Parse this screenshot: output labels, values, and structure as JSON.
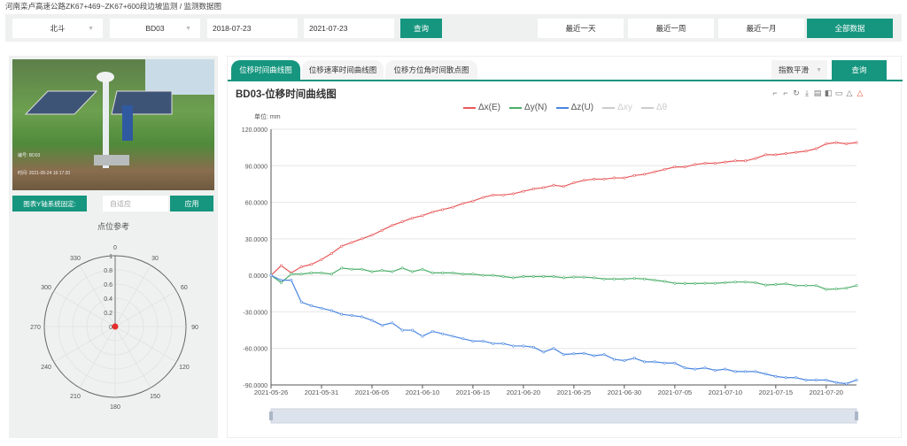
{
  "breadcrumb": {
    "project": "河南栾卢高速公路ZK67+469~ZK67+600段边坡监测",
    "sep": "/",
    "page": "监测数据图"
  },
  "filters": {
    "type": "北斗",
    "device": "BD03",
    "start_date": "2018-07-23",
    "end_date": "2021-07-23",
    "query_label": "查询",
    "quick": [
      {
        "label": "最近一天",
        "active": false
      },
      {
        "label": "最近一周",
        "active": false
      },
      {
        "label": "最近一月",
        "active": false
      },
      {
        "label": "全部数据",
        "active": true
      }
    ]
  },
  "left": {
    "y_axis_label": "图表Y轴系统固定:",
    "y_axis_placeholder": "自适应",
    "apply_label": "应用",
    "polar_title": "点位参考",
    "angle_labels": [
      "0",
      "30",
      "60",
      "90",
      "120",
      "150",
      "180",
      "210",
      "240",
      "270",
      "300",
      "330"
    ],
    "radius_labels": [
      "0",
      "0.2",
      "0.4",
      "0.6",
      "0.8",
      "1"
    ]
  },
  "tabs": [
    {
      "label": "位移时间曲线图",
      "active": true
    },
    {
      "label": "位移速率时间曲线图",
      "active": false
    },
    {
      "label": "位移方位角时间散点图",
      "active": false
    }
  ],
  "smoothing": "指数平滑",
  "query_label": "查询",
  "colors": {
    "accent": "#16967f",
    "x": "#e8585a",
    "y": "#4caf6a",
    "z": "#4a86e0",
    "disabled": "#ccc"
  },
  "chart_data": {
    "type": "line",
    "title": "BD03-位移时间曲线图",
    "unit_label": "单位: mm",
    "start_date": "2021-05-26",
    "interval_days": 1,
    "ylim": [
      -90,
      120
    ],
    "y_ticks": [
      "120.0000",
      "90.0000",
      "60.0000",
      "30.0000",
      "0.0000",
      "-30.0000",
      "-60.0000",
      "-90.0000"
    ],
    "x_ticks": [
      "2021-05-26",
      "2021-05-31",
      "2021-06-05",
      "2021-06-10",
      "2021-06-15",
      "2021-06-20",
      "2021-06-25",
      "2021-06-30",
      "2021-07-05",
      "2021-07-10",
      "2021-07-15",
      "2021-07-20"
    ],
    "legend": [
      "Δx(E)",
      "Δy(N)",
      "Δz(U)",
      "Δxy",
      "Δθ"
    ],
    "series": [
      {
        "name": "Δx(E)",
        "visible": true,
        "values": [
          0,
          8,
          2,
          7,
          9,
          13,
          18,
          24,
          27,
          30,
          33,
          37,
          41,
          44,
          47,
          49,
          52,
          54,
          56,
          59,
          61,
          64,
          66,
          66,
          67,
          69,
          71,
          72,
          74,
          73,
          76,
          78,
          79,
          79,
          80,
          80,
          82,
          83,
          85,
          87,
          89,
          89,
          91,
          92,
          92,
          93,
          94,
          94,
          96,
          99,
          99,
          100,
          101,
          102,
          104,
          108,
          109,
          108,
          109
        ]
      },
      {
        "name": "Δy(N)",
        "visible": true,
        "values": [
          0,
          -6,
          1,
          1,
          2,
          2,
          1,
          6,
          5,
          5,
          3,
          4,
          3,
          6,
          3,
          5,
          2,
          2,
          2,
          1,
          1,
          0,
          0,
          -1,
          -2,
          -1,
          -1,
          -1,
          -1,
          -2,
          -1.4,
          -1.5,
          -2,
          -3,
          -3,
          -3,
          -2.5,
          -3,
          -4,
          -5,
          -6.5,
          -6.7,
          -6.7,
          -6.5,
          -6.5,
          -6,
          -5.5,
          -5.5,
          -6,
          -8,
          -7.5,
          -7,
          -8.4,
          -8.4,
          -8.4,
          -11.5,
          -11.2,
          -10.5,
          -8.4
        ]
      },
      {
        "name": "Δz(U)",
        "visible": true,
        "values": [
          0,
          -4,
          -4,
          -22,
          -25,
          -27,
          -29,
          -32,
          -33,
          -34,
          -37,
          -41,
          -39,
          -45,
          -45,
          -50,
          -46,
          -48,
          -50,
          -52,
          -54,
          -54,
          -56,
          -56,
          -58,
          -58,
          -59,
          -63,
          -60,
          -65,
          -64.4,
          -64,
          -66,
          -65,
          -69,
          -70,
          -68,
          -71,
          -71,
          -72,
          -72,
          -76,
          -77,
          -76,
          -78,
          -77,
          -79,
          -79,
          -79,
          -81,
          -83,
          -84,
          -84,
          -86,
          -86,
          -86,
          -88,
          -89,
          -86
        ]
      },
      {
        "name": "Δxy",
        "visible": false,
        "values": []
      },
      {
        "name": "Δθ",
        "visible": false,
        "values": []
      }
    ]
  }
}
